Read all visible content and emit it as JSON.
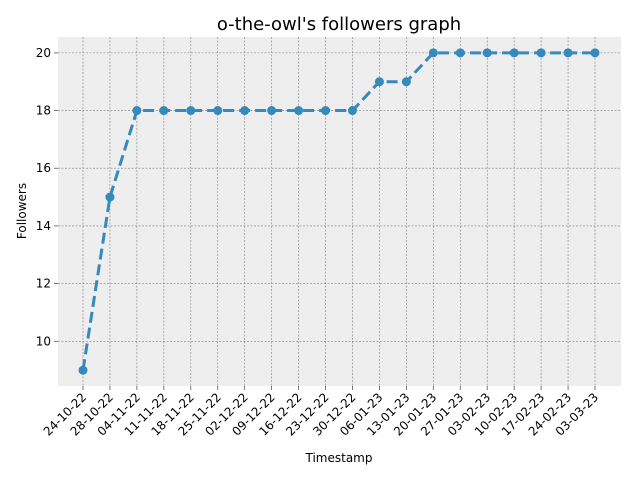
{
  "chart_data": {
    "type": "line",
    "title": "o-the-owl's followers graph",
    "xlabel": "Timestamp",
    "ylabel": "Followers",
    "categories": [
      "24-10-22",
      "28-10-22",
      "04-11-22",
      "11-11-22",
      "18-11-22",
      "25-11-22",
      "02-12-22",
      "09-12-22",
      "16-12-22",
      "23-12-22",
      "30-12-22",
      "06-01-23",
      "13-01-23",
      "20-01-23",
      "27-01-23",
      "03-02-23",
      "10-02-23",
      "17-02-23",
      "24-02-23",
      "03-03-23"
    ],
    "series": [
      {
        "values": [
          9,
          15,
          18,
          18,
          18,
          18,
          18,
          18,
          18,
          18,
          18,
          19,
          19,
          20,
          20,
          20,
          20,
          20,
          20,
          20
        ]
      }
    ],
    "ylim": [
      8.45,
      20.55
    ],
    "yticks": [
      10,
      12,
      14,
      16,
      18,
      20
    ],
    "grid": true,
    "line_style": "dashed",
    "marker": "circle",
    "colors": {
      "line": "#348abd",
      "plot_bg": "#eeeeee",
      "grid": "#808080"
    }
  }
}
